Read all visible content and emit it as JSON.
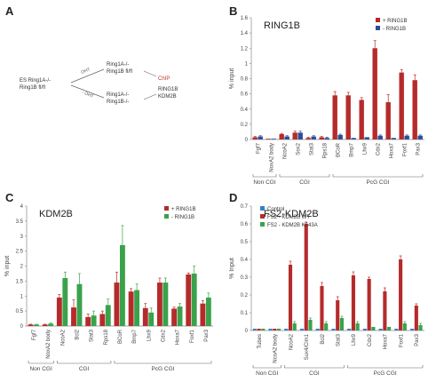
{
  "panel_a": {
    "label": "A",
    "es_line1": "ES Ring1A-/-",
    "es_line2": "Ring1B fl/fl",
    "arrow_top": "OHT",
    "arrow_bottom": "- OHT",
    "top1": "Ring1A-/-",
    "top2": "Ring1B fl/fl",
    "bot1": "Ring1A-/-",
    "bot2": "Ring1B-/-",
    "chip": "ChIP",
    "target1": "RING1B",
    "target2": "KDM2B"
  },
  "chart_data": [
    {
      "panel": "B",
      "type": "bar",
      "title": "RING1B",
      "ylabel": "% input",
      "ylim": [
        0,
        1.6
      ],
      "yticks": [
        "0",
        "0.2",
        "0.4",
        "0.6",
        "0.8",
        "1",
        "1.2",
        "1.4",
        "1.6"
      ],
      "categories": [
        "Fgf7",
        "NoxA2 body",
        "NcoA2",
        "Sox2",
        "Stat3",
        "Rps18",
        "BCoR",
        "Bmp7",
        "Lhx9",
        "Cdx2",
        "Hoxa7",
        "Foxf1",
        "Pax3"
      ],
      "series": [
        {
          "name": "+ RING1B",
          "color": "#b52b2b",
          "values": [
            0.03,
            0.01,
            0.07,
            0.09,
            0.02,
            0.03,
            0.58,
            0.58,
            0.52,
            1.2,
            0.49,
            0.88,
            0.78
          ],
          "errors": [
            0.01,
            0.0,
            0.01,
            0.02,
            0.01,
            0.01,
            0.05,
            0.04,
            0.03,
            0.1,
            0.1,
            0.04,
            0.07
          ]
        },
        {
          "name": "- RING1B",
          "color": "#2c4e99",
          "values": [
            0.04,
            0.01,
            0.04,
            0.09,
            0.04,
            0.02,
            0.06,
            0.02,
            0.03,
            0.05,
            0.02,
            0.05,
            0.05
          ],
          "errors": [
            0.01,
            0.0,
            0.01,
            0.02,
            0.01,
            0.01,
            0.01,
            0.0,
            0.0,
            0.01,
            0.0,
            0.01,
            0.01
          ]
        }
      ],
      "groups": [
        {
          "label": "Non CGI",
          "start": 0,
          "end": 1
        },
        {
          "label": "CGI",
          "start": 2,
          "end": 5
        },
        {
          "label": "PcG CGI",
          "start": 6,
          "end": 12
        }
      ]
    },
    {
      "panel": "C",
      "type": "bar",
      "title": "KDM2B",
      "ylabel": "% input",
      "ylim": [
        0,
        4
      ],
      "yticks": [
        "0",
        "0.5",
        "1",
        "1.5",
        "2",
        "2.5",
        "3",
        "3.5",
        "4"
      ],
      "categories": [
        "Fgf7",
        "NoxA2 body",
        "NcoA2",
        "Bcl2",
        "Stat3",
        "Rps18",
        "BCoR",
        "Bmp7",
        "Lhx9",
        "Cdx2",
        "Hoxa7",
        "Foxf1",
        "Pax3"
      ],
      "series": [
        {
          "name": "+ RING1B",
          "color": "#b52b2b",
          "values": [
            0.05,
            0.05,
            0.95,
            0.62,
            0.3,
            0.4,
            1.45,
            1.15,
            0.6,
            1.45,
            0.58,
            1.72,
            0.75
          ],
          "errors": [
            0.01,
            0.01,
            0.1,
            0.25,
            0.1,
            0.1,
            0.35,
            0.1,
            0.15,
            0.15,
            0.05,
            0.05,
            0.1
          ]
        },
        {
          "name": "- RING1B",
          "color": "#3aa24a",
          "values": [
            0.05,
            0.08,
            1.6,
            1.4,
            0.35,
            0.7,
            2.7,
            1.2,
            0.45,
            1.45,
            0.65,
            1.75,
            0.95
          ],
          "errors": [
            0.01,
            0.02,
            0.2,
            0.35,
            0.15,
            0.2,
            0.65,
            0.2,
            0.15,
            0.15,
            0.1,
            0.25,
            0.15
          ]
        }
      ],
      "groups": [
        {
          "label": "Non CGI",
          "start": 0,
          "end": 1
        },
        {
          "label": "CGI",
          "start": 2,
          "end": 5
        },
        {
          "label": "PcG CGI",
          "start": 6,
          "end": 12
        }
      ]
    },
    {
      "panel": "D",
      "type": "bar",
      "title": "FS2-KDM2B",
      "ylabel": "% Input",
      "ylim": [
        0,
        0.7
      ],
      "yticks": [
        "0",
        "0.1",
        "0.2",
        "0.3",
        "0.4",
        "0.5",
        "0.6",
        "0.7"
      ],
      "categories": [
        "Tubes",
        "NcoA2 body",
        "NcoA2",
        "Sux4/Cim1",
        "Bcl2",
        "Stat3",
        "Lhx9",
        "Cdx2",
        "Hoxa7",
        "Foxf1",
        "Pax3"
      ],
      "series": [
        {
          "name": "Control",
          "color": "#3a7fc8",
          "values": [
            0.01,
            0.01,
            0.01,
            0.01,
            0.01,
            0.01,
            0.01,
            0.01,
            0.01,
            0.01,
            0.01
          ],
          "errors": [
            0,
            0,
            0,
            0,
            0,
            0,
            0,
            0,
            0,
            0,
            0
          ]
        },
        {
          "name": "FS2 - KDM2B WT",
          "color": "#b52b2b",
          "values": [
            0.01,
            0.01,
            0.37,
            0.6,
            0.25,
            0.17,
            0.31,
            0.29,
            0.22,
            0.4,
            0.14
          ],
          "errors": [
            0,
            0,
            0.02,
            0.01,
            0.02,
            0.02,
            0.02,
            0.01,
            0.02,
            0.02,
            0.01
          ]
        },
        {
          "name": "FS2 - KDM2B K643A",
          "color": "#3aa24a",
          "values": [
            0.01,
            0.01,
            0.04,
            0.06,
            0.04,
            0.07,
            0.04,
            0.02,
            0.02,
            0.04,
            0.03
          ],
          "errors": [
            0,
            0,
            0.01,
            0.01,
            0.01,
            0.01,
            0.01,
            0.0,
            0.0,
            0.01,
            0.01
          ]
        }
      ],
      "groups": [
        {
          "label": "Non CGI",
          "start": 0,
          "end": 1
        },
        {
          "label": "CGI",
          "start": 2,
          "end": 5
        },
        {
          "label": "PcG CGI",
          "start": 6,
          "end": 10
        }
      ]
    }
  ]
}
